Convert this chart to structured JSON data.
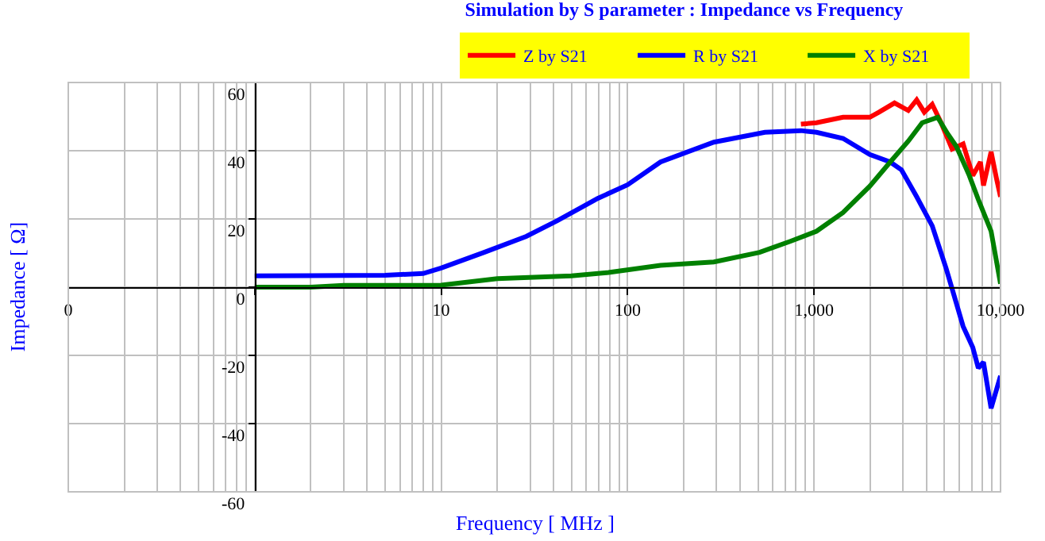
{
  "chart_data": {
    "type": "line",
    "title": "Simulation by S parameter : Impedance vs Frequency",
    "xlabel": "Frequency [ MHz ]",
    "ylabel": "Impedance [ Ω]",
    "log": "x",
    "xlim": [
      0.1,
      10000
    ],
    "xticks": [
      {
        "value": 0.1,
        "label": "0"
      },
      {
        "value": 1,
        "label": null
      },
      10,
      100,
      {
        "value": 1000,
        "label": "1,000"
      },
      {
        "value": 10000,
        "label": "10,000"
      }
    ],
    "ylim": [
      -60,
      60
    ],
    "yticks": [
      -60,
      -40,
      -20,
      0,
      20,
      40,
      60
    ],
    "grid": true,
    "legend": "top",
    "marker": "none",
    "line_style": "solid",
    "series": [
      {
        "name": "Z by S21",
        "color": "#ff0000",
        "x": [
          850,
          1030,
          1430,
          1990,
          2230,
          2700,
          3200,
          3550,
          3900,
          4300,
          4800,
          5500,
          6300,
          7100,
          7800,
          8100,
          8900,
          9500,
          10000
        ],
        "values": [
          47.8,
          48.2,
          49.8,
          49.8,
          51.3,
          54,
          51.8,
          54.9,
          51.3,
          53.6,
          48.2,
          40.5,
          42,
          32.7,
          36.7,
          29.8,
          39.7,
          32,
          26.5
        ]
      },
      {
        "name": "R by S21",
        "color": "#0000ff",
        "x": [
          1,
          2,
          5,
          8,
          10,
          17,
          28.6,
          42,
          69,
          100,
          150,
          290,
          545,
          850,
          1030,
          1430,
          1990,
          2560,
          2940,
          3550,
          4300,
          5100,
          5500,
          6300,
          7100,
          7600,
          8100,
          8900,
          10000
        ],
        "values": [
          3.3,
          3.4,
          3.5,
          4,
          5.6,
          10.2,
          14.9,
          19.5,
          26,
          30,
          36.7,
          42.5,
          45.4,
          45.9,
          45.4,
          43.6,
          38.9,
          36.7,
          34.4,
          26.5,
          18,
          5.6,
          -0.5,
          -11.5,
          -17.7,
          -23.7,
          -22,
          -35.5,
          -26
        ]
      },
      {
        "name": "X by S21",
        "color": "#008000",
        "x": [
          1,
          2,
          3,
          5,
          10,
          20,
          50,
          79,
          150,
          290,
          510,
          750,
          1030,
          1430,
          1990,
          2560,
          3200,
          3800,
          4600,
          5200,
          5800,
          6800,
          7600,
          8900,
          10000
        ],
        "values": [
          0,
          0,
          0.5,
          0.5,
          0.6,
          2.5,
          3.3,
          4.3,
          6.4,
          7.4,
          10.2,
          13.5,
          16.4,
          21.9,
          29.6,
          36.7,
          42.8,
          48.2,
          49.8,
          45,
          41.2,
          32.7,
          25.7,
          16.4,
          1
        ]
      }
    ]
  }
}
